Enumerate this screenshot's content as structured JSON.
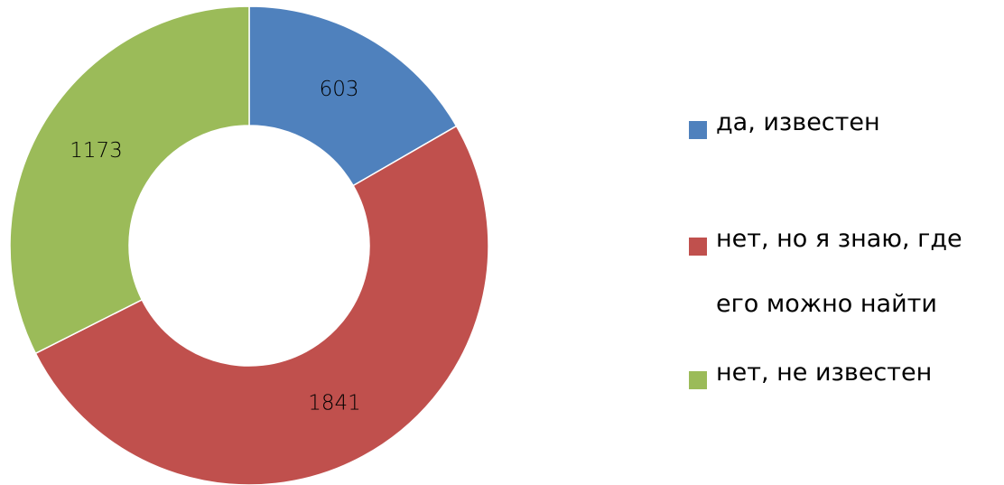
{
  "chart_data": {
    "type": "donut",
    "categories": [
      "да, известен",
      "нет, но я знаю, где его можно найти",
      "нет, не известен"
    ],
    "values": [
      603,
      1841,
      1173
    ],
    "colors": [
      "#4f81bd",
      "#c0504d",
      "#9bbb59"
    ],
    "legend": "right"
  }
}
